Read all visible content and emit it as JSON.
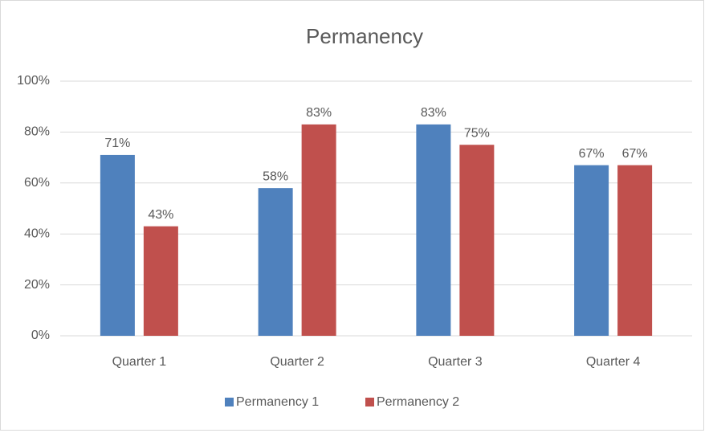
{
  "chart_data": {
    "type": "bar",
    "title": "Permanency",
    "categories": [
      "Quarter 1",
      "Quarter 2",
      "Quarter 3",
      "Quarter 4"
    ],
    "series": [
      {
        "name": "Permanency 1",
        "color": "#4f81bd",
        "values": [
          71,
          58,
          83,
          67
        ],
        "value_labels": [
          "71%",
          "58%",
          "83%",
          "67%"
        ]
      },
      {
        "name": "Permanency 2",
        "color": "#c0504d",
        "values": [
          43,
          83,
          75,
          67
        ],
        "value_labels": [
          "43%",
          "83%",
          "75%",
          "67%"
        ]
      }
    ],
    "ylim": [
      0,
      100
    ],
    "yticks": [
      {
        "value": 0,
        "label": "0%"
      },
      {
        "value": 20,
        "label": "20%"
      },
      {
        "value": 40,
        "label": "40%"
      },
      {
        "value": 60,
        "label": "60%"
      },
      {
        "value": 80,
        "label": "80%"
      },
      {
        "value": 100,
        "label": "100%"
      }
    ],
    "grid": true,
    "legend": "bottom"
  }
}
